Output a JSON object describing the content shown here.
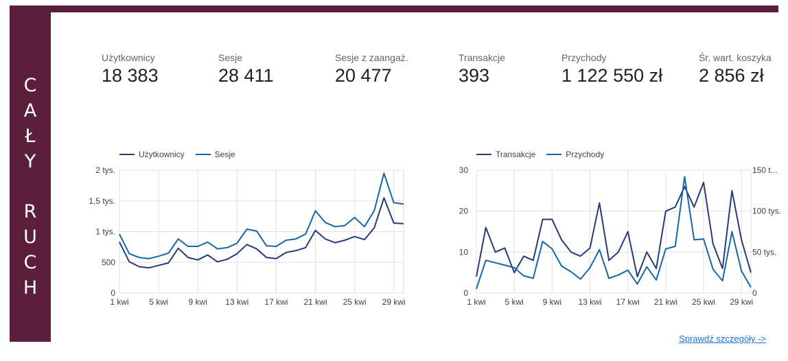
{
  "side_title": [
    "C",
    "A",
    "Ł",
    "Y",
    "",
    "R",
    "U",
    "C",
    "H"
  ],
  "kpis": [
    {
      "label": "Użytkownicy",
      "value": "18 383"
    },
    {
      "label": "Sesje",
      "value": "28 411"
    },
    {
      "label": "Sesje z zaangaż.",
      "value": "20 477"
    },
    {
      "label": "Transakcje",
      "value": "393"
    },
    {
      "label": "Przychody",
      "value": "1 122 550 zł"
    },
    {
      "label": "Śr. wart. koszyka",
      "value": "2 856 zł"
    }
  ],
  "colors": {
    "brand": "#5c1f3b",
    "series_dark": "#263a78",
    "series_blue": "#1565a8",
    "link": "#1a73e8"
  },
  "details_link": "Sprawdź szczegóły ->",
  "chart_data": [
    {
      "type": "line",
      "x": [
        "1 kwi",
        "2 kwi",
        "3 kwi",
        "4 kwi",
        "5 kwi",
        "6 kwi",
        "7 kwi",
        "8 kwi",
        "9 kwi",
        "10 kwi",
        "11 kwi",
        "12 kwi",
        "13 kwi",
        "14 kwi",
        "15 kwi",
        "16 kwi",
        "17 kwi",
        "18 kwi",
        "19 kwi",
        "20 kwi",
        "21 kwi",
        "22 kwi",
        "23 kwi",
        "24 kwi",
        "25 kwi",
        "26 kwi",
        "27 kwi",
        "28 kwi",
        "29 kwi",
        "30 kwi"
      ],
      "x_ticks": [
        "1 kwi",
        "5 kwi",
        "9 kwi",
        "13 kwi",
        "17 kwi",
        "21 kwi",
        "25 kwi",
        "29 kwi"
      ],
      "y_ticks": [
        "0",
        "500",
        "1 tys.",
        "1,5 tys.",
        "2 tys."
      ],
      "ylim": [
        0,
        2000
      ],
      "legend_position": "top-left",
      "grid": true,
      "series": [
        {
          "name": "Użytkownicy",
          "color": "#263a78",
          "values": [
            830,
            510,
            430,
            410,
            450,
            490,
            730,
            580,
            540,
            620,
            510,
            550,
            640,
            790,
            720,
            580,
            560,
            660,
            690,
            740,
            1020,
            880,
            820,
            860,
            920,
            870,
            1060,
            1550,
            1140,
            1130
          ]
        },
        {
          "name": "Sesje",
          "color": "#1565a8",
          "values": [
            960,
            640,
            580,
            560,
            600,
            650,
            880,
            760,
            760,
            830,
            720,
            740,
            810,
            1040,
            1010,
            770,
            760,
            860,
            880,
            960,
            1340,
            1150,
            1080,
            1100,
            1230,
            1080,
            1340,
            1950,
            1470,
            1450
          ]
        }
      ]
    },
    {
      "type": "line",
      "x": [
        "1 kwi",
        "2 kwi",
        "3 kwi",
        "4 kwi",
        "5 kwi",
        "6 kwi",
        "7 kwi",
        "8 kwi",
        "9 kwi",
        "10 kwi",
        "11 kwi",
        "12 kwi",
        "13 kwi",
        "14 kwi",
        "15 kwi",
        "16 kwi",
        "17 kwi",
        "18 kwi",
        "19 kwi",
        "20 kwi",
        "21 kwi",
        "22 kwi",
        "23 kwi",
        "24 kwi",
        "25 kwi",
        "26 kwi",
        "27 kwi",
        "28 kwi",
        "29 kwi",
        "30 kwi"
      ],
      "x_ticks": [
        "1 kwi",
        "5 kwi",
        "9 kwi",
        "13 kwi",
        "17 kwi",
        "21 kwi",
        "25 kwi",
        "29 kwi"
      ],
      "y_ticks_left": [
        "0",
        "10",
        "20",
        "30"
      ],
      "y_ticks_right": [
        "0",
        "50 tys.",
        "100 tys.",
        "150 t..."
      ],
      "ylim_left": [
        0,
        30
      ],
      "ylim_right": [
        0,
        150000
      ],
      "legend_position": "top-left",
      "grid": true,
      "series": [
        {
          "name": "Transakcje",
          "axis": "left",
          "color": "#263a78",
          "values": [
            4,
            16,
            10,
            11,
            5,
            9,
            8,
            18,
            18,
            13,
            10,
            9,
            11,
            22,
            8,
            10,
            15,
            4,
            10,
            6,
            20,
            21,
            26,
            21,
            27,
            12,
            6,
            25,
            13,
            5
          ]
        },
        {
          "name": "Przychody",
          "axis": "right",
          "color": "#1565a8",
          "values": [
            5000,
            40000,
            37000,
            34000,
            31000,
            21000,
            18000,
            63000,
            54000,
            33000,
            26000,
            17000,
            31000,
            53000,
            18000,
            22000,
            28000,
            11000,
            32000,
            16000,
            54000,
            57000,
            142000,
            65000,
            66000,
            29000,
            15000,
            75000,
            27000,
            7000
          ]
        }
      ]
    }
  ]
}
